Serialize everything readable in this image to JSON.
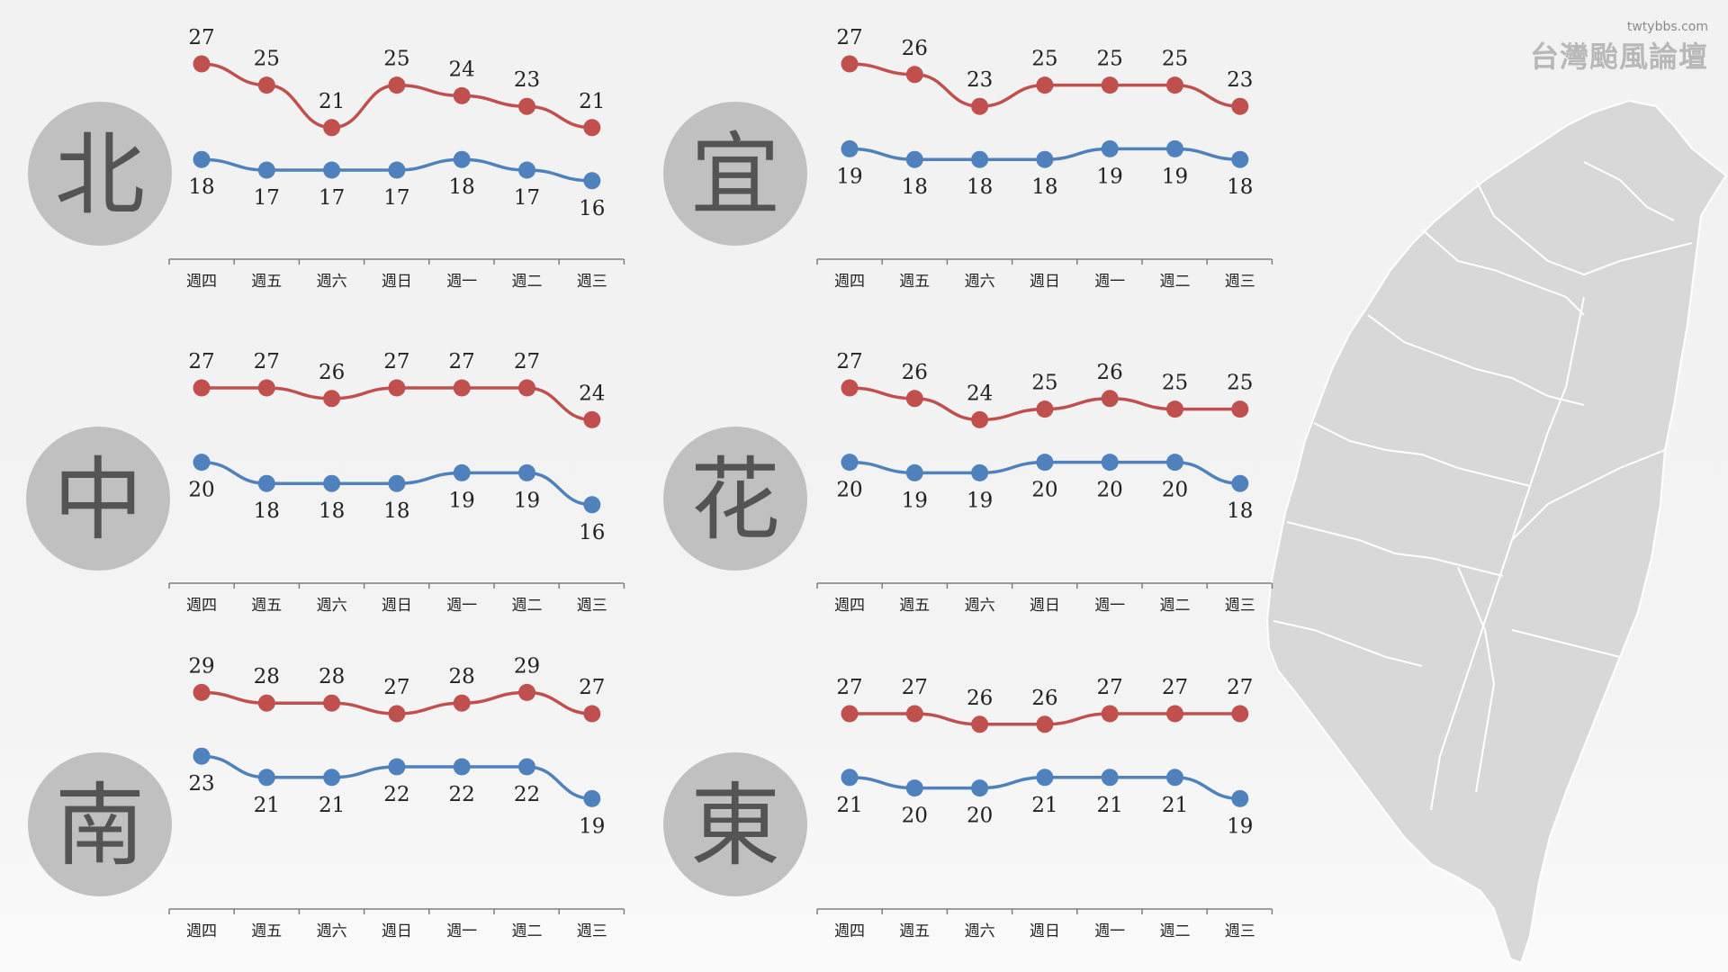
{
  "logo": {
    "url": "twtybbs.com",
    "name": "台灣颱風論壇"
  },
  "colors": {
    "high": "#c0504d",
    "low": "#4f81bd"
  },
  "map": {
    "icon": "taiwan-map-icon"
  },
  "chart_data": [
    {
      "type": "line",
      "region": "北",
      "categories": [
        "週四",
        "週五",
        "週六",
        "週日",
        "週一",
        "週二",
        "週三"
      ],
      "series": [
        {
          "values": [
            27,
            25,
            21,
            25,
            24,
            23,
            21
          ]
        },
        {
          "values": [
            18,
            17,
            17,
            17,
            18,
            17,
            16
          ]
        }
      ]
    },
    {
      "type": "line",
      "region": "宜",
      "categories": [
        "週四",
        "週五",
        "週六",
        "週日",
        "週一",
        "週二",
        "週三"
      ],
      "series": [
        {
          "values": [
            27,
            26,
            23,
            25,
            25,
            25,
            23
          ]
        },
        {
          "values": [
            19,
            18,
            18,
            18,
            19,
            19,
            18
          ]
        }
      ]
    },
    {
      "type": "line",
      "region": "中",
      "categories": [
        "週四",
        "週五",
        "週六",
        "週日",
        "週一",
        "週二",
        "週三"
      ],
      "series": [
        {
          "values": [
            27,
            27,
            26,
            27,
            27,
            27,
            24
          ]
        },
        {
          "values": [
            20,
            18,
            18,
            18,
            19,
            19,
            16
          ]
        }
      ]
    },
    {
      "type": "line",
      "region": "花",
      "categories": [
        "週四",
        "週五",
        "週六",
        "週日",
        "週一",
        "週二",
        "週三"
      ],
      "series": [
        {
          "values": [
            27,
            26,
            24,
            25,
            26,
            25,
            25
          ]
        },
        {
          "values": [
            20,
            19,
            19,
            20,
            20,
            20,
            18
          ]
        }
      ]
    },
    {
      "type": "line",
      "region": "南",
      "categories": [
        "週四",
        "週五",
        "週六",
        "週日",
        "週一",
        "週二",
        "週三"
      ],
      "series": [
        {
          "values": [
            29,
            28,
            28,
            27,
            28,
            29,
            27
          ]
        },
        {
          "values": [
            23,
            21,
            21,
            22,
            22,
            22,
            19
          ]
        }
      ]
    },
    {
      "type": "line",
      "region": "東",
      "categories": [
        "週四",
        "週五",
        "週六",
        "週日",
        "週一",
        "週二",
        "週三"
      ],
      "series": [
        {
          "values": [
            27,
            27,
            26,
            26,
            27,
            27,
            27
          ]
        },
        {
          "values": [
            21,
            20,
            20,
            21,
            21,
            21,
            19
          ]
        }
      ]
    }
  ]
}
